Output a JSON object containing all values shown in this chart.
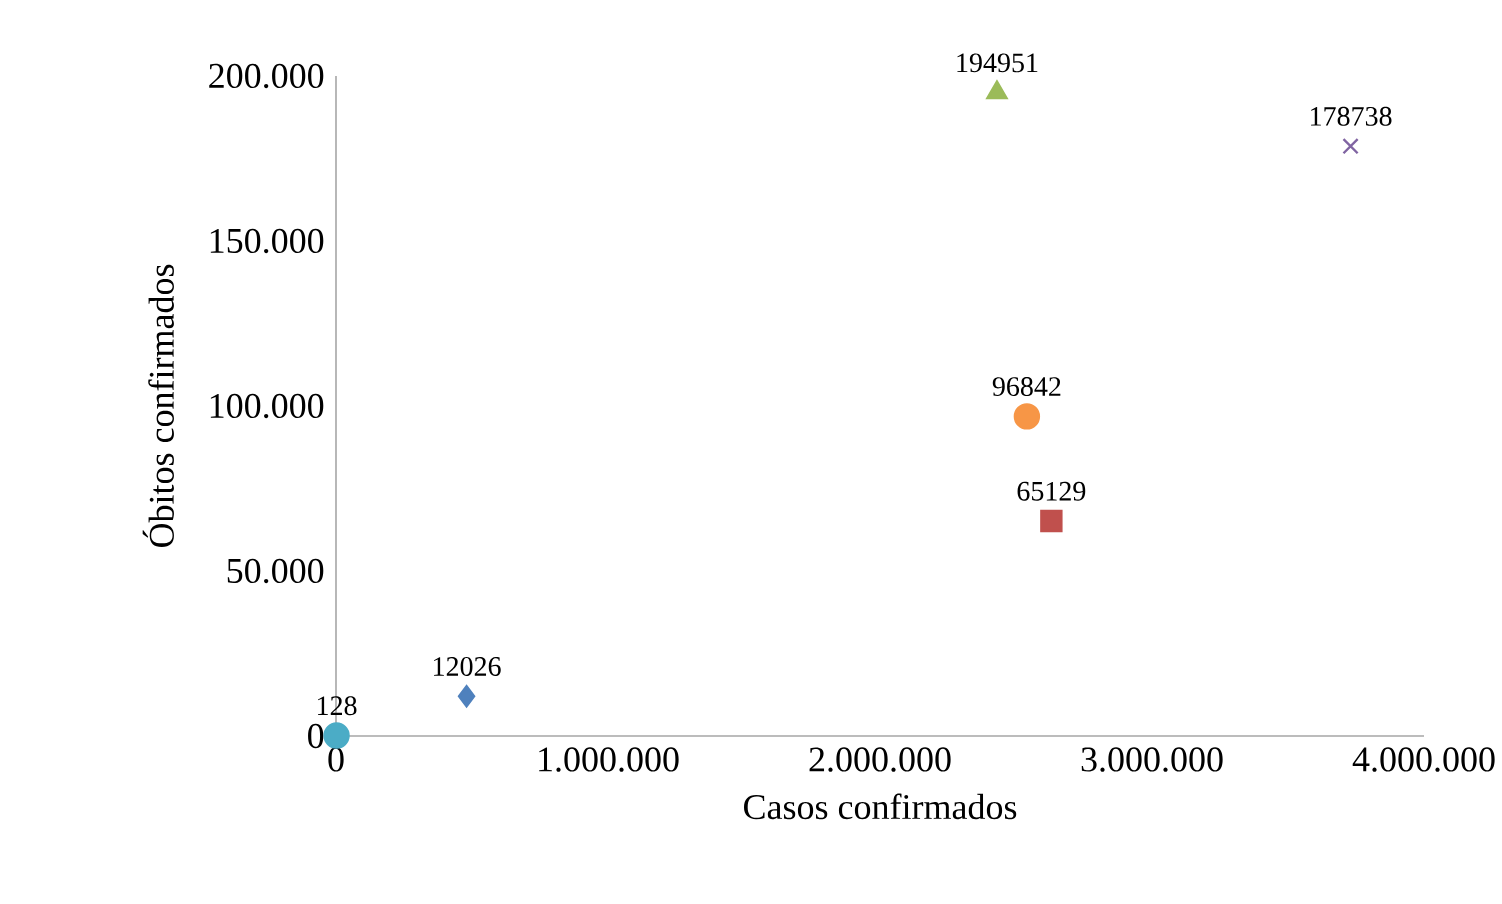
{
  "chart_data": {
    "type": "scatter",
    "xlabel": "Casos confirmados",
    "ylabel": "Óbitos confirmados",
    "xlim": [
      0,
      4000000
    ],
    "ylim": [
      0,
      200000
    ],
    "xticks": [
      0,
      {
        "value": 1000000,
        "label": "1.000.000"
      },
      {
        "value": 2000000,
        "label": "2.000.000"
      },
      {
        "value": 3000000,
        "label": "3.000.000"
      },
      {
        "value": 4000000,
        "label": "4.000.000"
      }
    ],
    "yticks": [
      0,
      {
        "value": 50000,
        "label": "50.000"
      },
      {
        "value": 100000,
        "label": "100.000"
      },
      {
        "value": 150000,
        "label": "150.000"
      },
      {
        "value": 200000,
        "label": "200.000"
      }
    ],
    "grid": false,
    "data_labels": true,
    "series": [
      {
        "color": "#4f81bd",
        "marker": "diamond",
        "x": [
          480000
        ],
        "values": [
          12026
        ]
      },
      {
        "color": "#c0504d",
        "marker": "square",
        "x": [
          2630000
        ],
        "values": [
          65129
        ]
      },
      {
        "color": "#9bbb59",
        "marker": "triangle",
        "x": [
          2430000
        ],
        "values": [
          194951
        ]
      },
      {
        "color": "#8064a2",
        "marker": "cross",
        "x": [
          3730000
        ],
        "values": [
          178738
        ]
      },
      {
        "color": "#4bacc6",
        "marker": "circle",
        "x": [
          2000
        ],
        "values": [
          128
        ]
      },
      {
        "color": "#f79646",
        "marker": "circle",
        "x": [
          2540000
        ],
        "values": [
          96842
        ]
      }
    ]
  }
}
